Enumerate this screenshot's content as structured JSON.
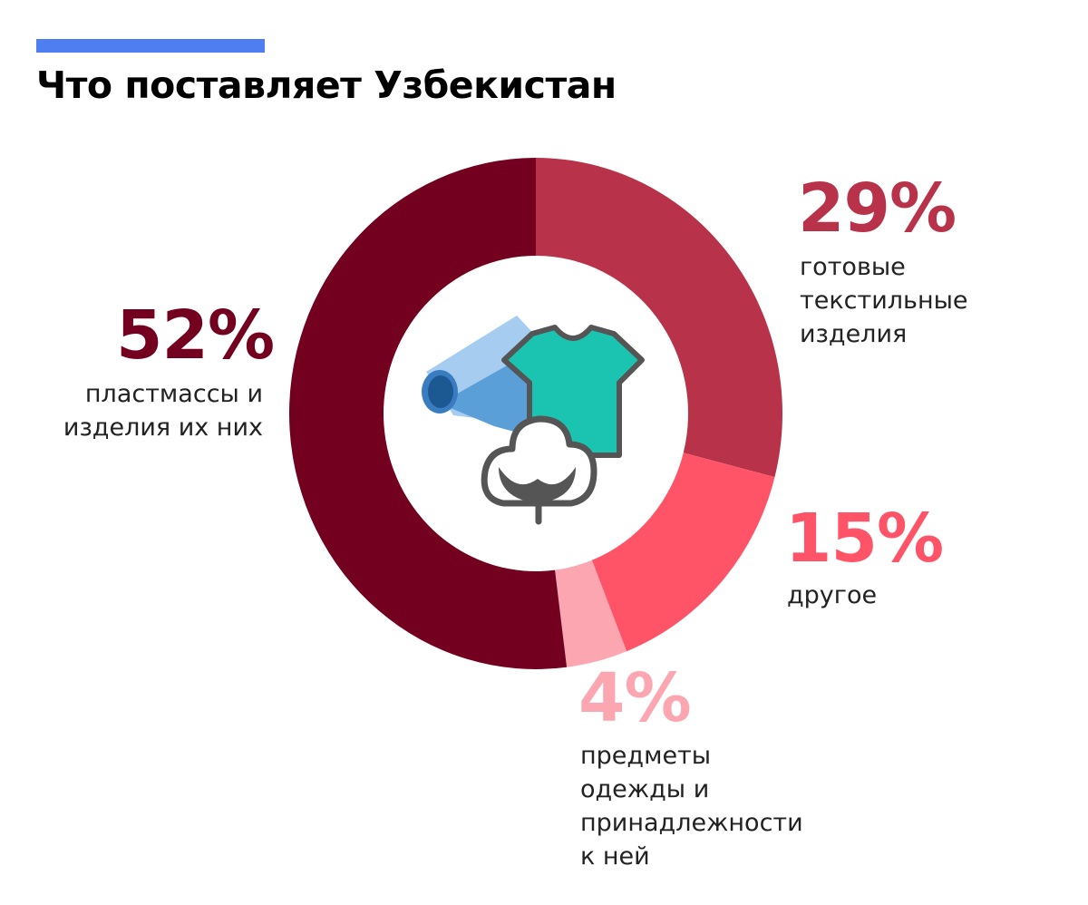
{
  "header": {
    "title": "Что поставляет Узбекистан",
    "accent_color": "#4f7ef0"
  },
  "chart_data": {
    "type": "pie",
    "variant": "donut",
    "title": "Что поставляет Узбекистан",
    "center_icon": "textile-roll-tshirt-cotton-icon",
    "slices": [
      {
        "value": 29,
        "label": "29%",
        "name": "готовые текстильные изделия",
        "color": "#b8334a"
      },
      {
        "value": 15,
        "label": "15%",
        "name": "другое",
        "color": "#ff5468"
      },
      {
        "value": 4,
        "label": "4%",
        "name": "предметы одежды и принадлежности к ней",
        "color": "#fba6b1"
      },
      {
        "value": 52,
        "label": "52%",
        "name": "пластмассы и изделия их них",
        "color": "#740020"
      }
    ]
  }
}
